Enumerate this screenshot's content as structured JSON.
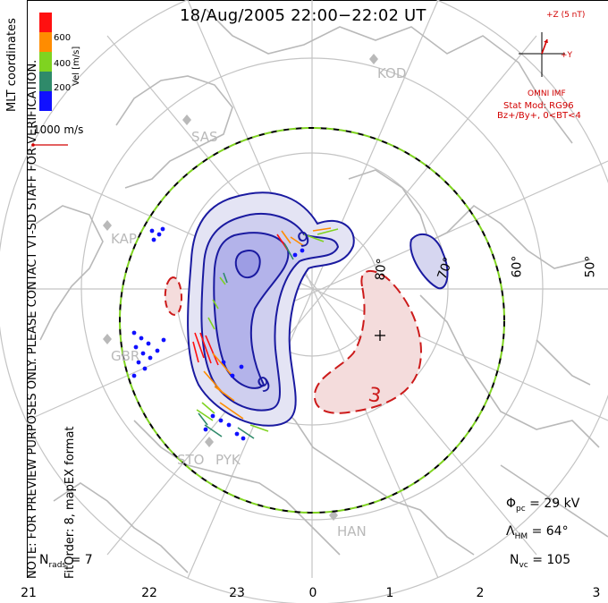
{
  "title": "18/Aug/2005 22:00−22:02 UT",
  "note_line1": "NOTE: FOR PREVIEW PURPOSES ONLY. PLEASE CONTACT VT-SD STAFF FOR VERIFICATION.",
  "note_line2": "FitOrder: 8, mapEX format",
  "coord_label": "MLT coordinates",
  "colorbar": {
    "unit": "Vel [m/s]",
    "ticks": [
      "600",
      "400",
      "200"
    ],
    "colors": [
      "#ff1010",
      "#ff8c00",
      "#7fd320",
      "#2f8a6a",
      "#1010ff"
    ]
  },
  "vector_scale_label": "1000 m/s",
  "imf": {
    "bz_label": "+Z (5 nT)",
    "by_label": "+Y",
    "source": "OMNI IMF",
    "model": "Stat Mod: RG96",
    "condition": "Bz+/By+, 0<BT<4"
  },
  "stats": {
    "phi_symbol": "Φ",
    "phi_sub": "pc",
    "phi_value": "= 29 kV",
    "lambda_symbol": "Λ",
    "lambda_sub": "HM",
    "lambda_value": "= 64°",
    "nvc_symbol": "N",
    "nvc_sub": "vc",
    "nvc_value": "= 105",
    "nrads_symbol": "N",
    "nrads_sub": "rads",
    "nrads_value": "= 7"
  },
  "mlt_ticks": [
    "21",
    "22",
    "23",
    "0",
    "1",
    "2",
    "3"
  ],
  "lat_labels": [
    "70°",
    "60°",
    "50°",
    "80°"
  ],
  "radar_sites": [
    "KOD",
    "SAS",
    "KAP",
    "GBR",
    "STO",
    "PYK",
    "HAN"
  ],
  "contour_labels": [
    "9",
    "9",
    "3"
  ],
  "colors": {
    "positive_contour": "#1a1aa0",
    "negative_contour": "#cc1a1a",
    "boundary_a": "#000000",
    "boundary_b": "#7fd320",
    "coast": "#b9b9b9"
  }
}
